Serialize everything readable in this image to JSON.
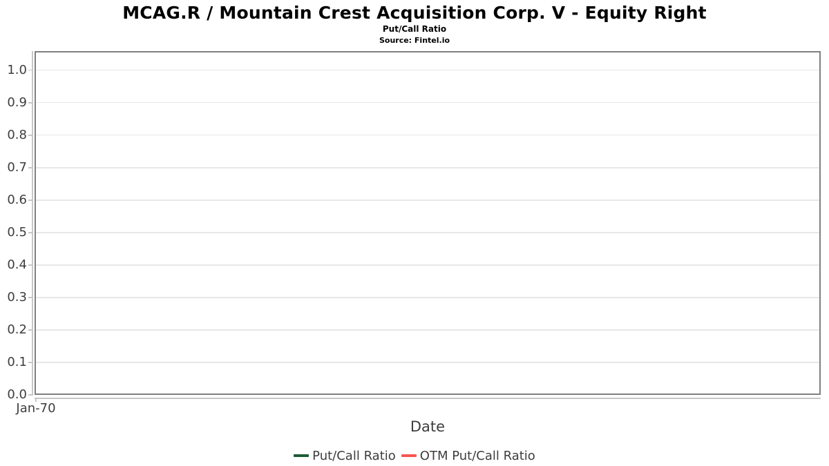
{
  "chart": {
    "title": "MCAG.R / Mountain Crest Acquisition Corp. V - Equity Right",
    "subtitle": "Put/Call Ratio",
    "source": "Source: Fintel.io"
  },
  "chart_data": {
    "type": "line",
    "title": "MCAG.R / Mountain Crest Acquisition Corp. V - Equity Right",
    "subtitle": "Put/Call Ratio",
    "source": "Fintel.io",
    "xlabel": "Date",
    "ylabel": "",
    "x_tick_labels": [
      "Jan-70"
    ],
    "y_tick_labels": [
      "1.0",
      "0.9",
      "0.8",
      "0.7",
      "0.6",
      "0.5",
      "0.4",
      "0.3",
      "0.2",
      "0.1",
      "0.0"
    ],
    "ylim": [
      0,
      1.059
    ],
    "y_tick_step": 0.1,
    "grid": true,
    "legend_position": "bottom",
    "series": [
      {
        "name": "Put/Call Ratio",
        "color": "#1d5c36",
        "x": [],
        "values": []
      },
      {
        "name": "OTM Put/Call Ratio",
        "color": "#f9564f",
        "x": [],
        "values": []
      }
    ]
  },
  "colors": {
    "plot_border": "#7f7f7f",
    "gridline": "#e7e7e7",
    "axis_line": "#c6c6c6",
    "axis_text": "#3d3d3d",
    "title_text": "#000000"
  }
}
